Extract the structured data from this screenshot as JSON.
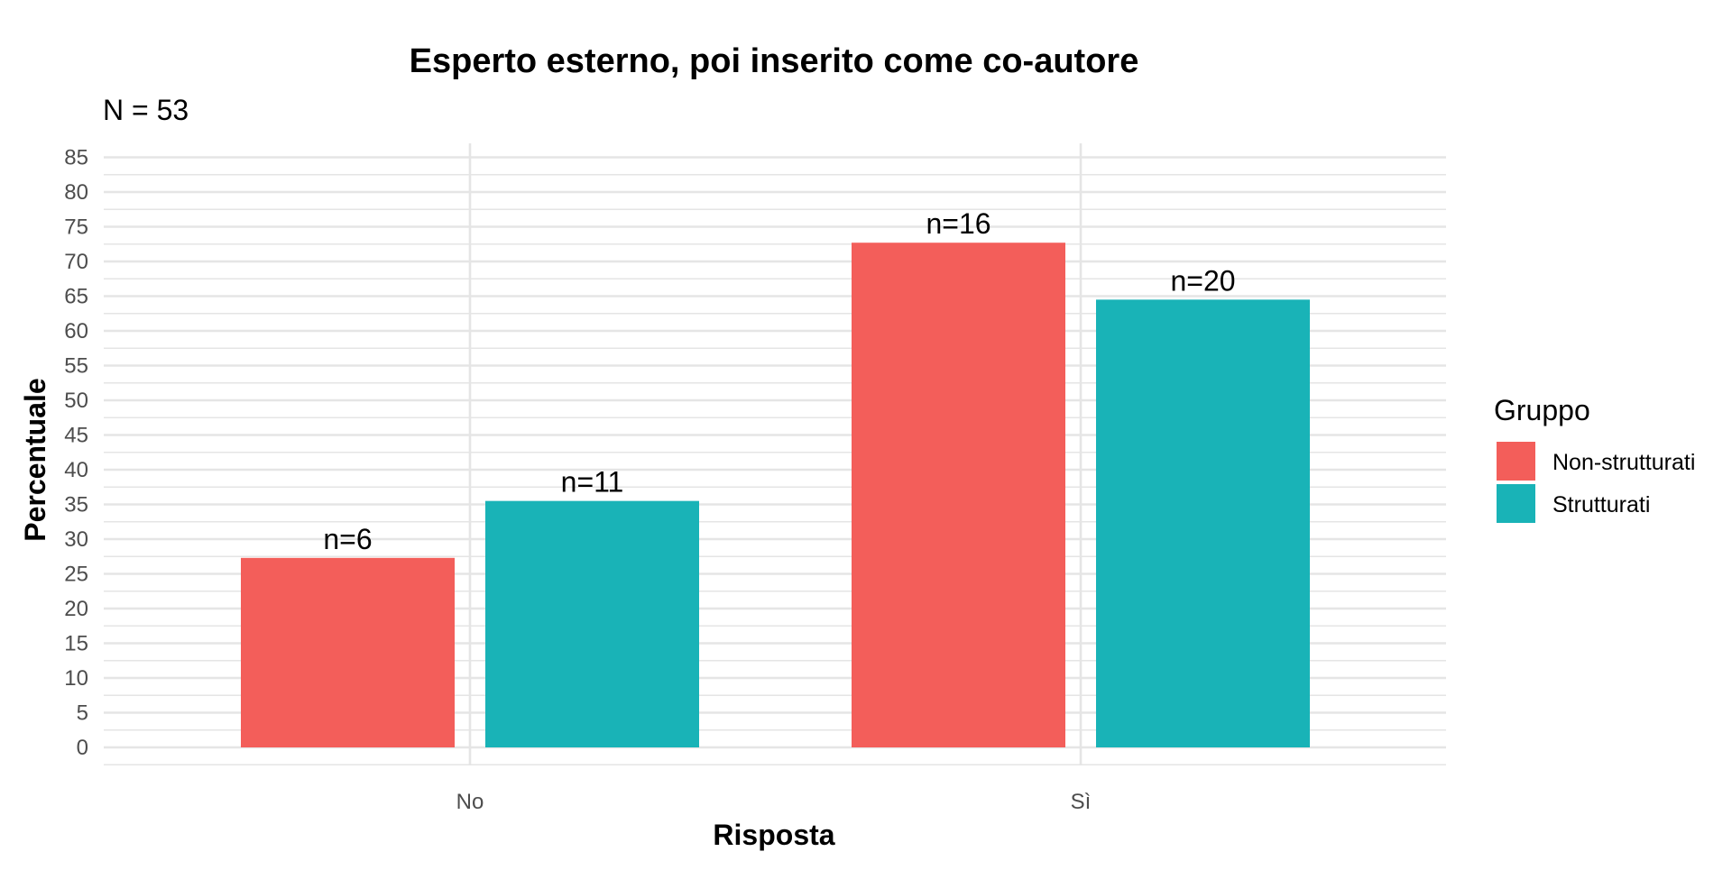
{
  "chart_data": {
    "type": "bar",
    "title": "Esperto esterno, poi inserito come co-autore",
    "subtitle": "N = 53",
    "xlabel": "Risposta",
    "ylabel": "Percentuale",
    "categories": [
      "No",
      "Sì"
    ],
    "series": [
      {
        "name": "Non-strutturati",
        "color": "#F35E5A",
        "values": [
          27.3,
          72.7
        ],
        "labels": [
          "n=6",
          "n=16"
        ]
      },
      {
        "name": "Strutturati",
        "color": "#19B3B7",
        "values": [
          35.5,
          64.5
        ],
        "labels": [
          "n=11",
          "n=20"
        ]
      }
    ],
    "ylim": [
      0,
      85
    ],
    "yticks": [
      0,
      5,
      10,
      15,
      20,
      25,
      30,
      35,
      40,
      45,
      50,
      55,
      60,
      65,
      70,
      75,
      80,
      85
    ],
    "grid": true,
    "legend": {
      "title": "Gruppo",
      "position": "right"
    }
  }
}
